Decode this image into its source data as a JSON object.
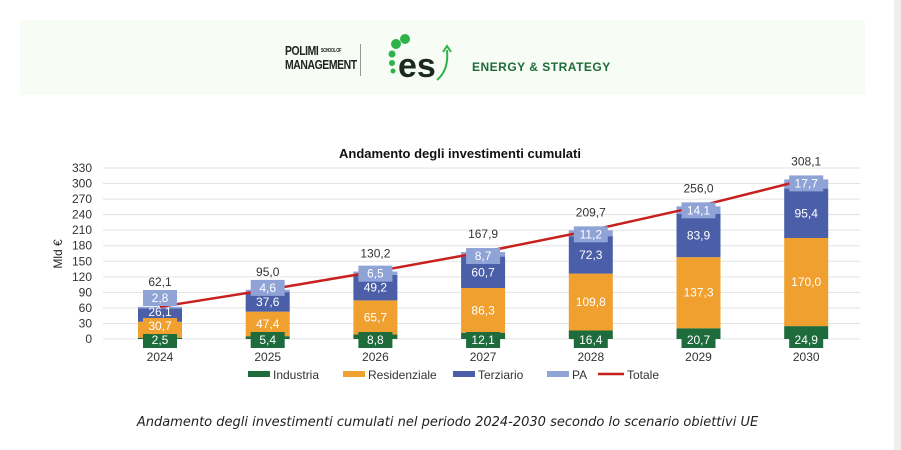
{
  "header": {
    "polimi_line1": "POLIMI",
    "polimi_small": "SCHOOL OF",
    "polimi_line2": "MANAGEMENT",
    "es_logo": "es",
    "es_name": "ENERGY & STRATEGY"
  },
  "chart_data": {
    "type": "bar",
    "stacked": true,
    "title": "Andamento degli investimenti cumulati",
    "ylabel": "Mld €",
    "xlabel": "",
    "ylim": [
      0,
      330
    ],
    "yticks": [
      0,
      30,
      60,
      90,
      120,
      150,
      180,
      210,
      240,
      270,
      300,
      330
    ],
    "categories": [
      "2024",
      "2025",
      "2026",
      "2027",
      "2028",
      "2029",
      "2030"
    ],
    "series": [
      {
        "name": "Industria",
        "color": "#1e6b3c",
        "values": [
          2.5,
          5.4,
          8.8,
          12.1,
          16.4,
          20.7,
          24.9
        ],
        "labels": [
          "2,5",
          "5,4",
          "8,8",
          "12,1",
          "16,4",
          "20,7",
          "24,9"
        ]
      },
      {
        "name": "Residenziale",
        "color": "#efa02e",
        "values": [
          30.7,
          47.4,
          65.7,
          86.3,
          109.8,
          137.3,
          170.0
        ],
        "labels": [
          "30,7",
          "47,4",
          "65,7",
          "86,3",
          "109,8",
          "137,3",
          "170,0"
        ]
      },
      {
        "name": "Terziario",
        "color": "#4a5fa8",
        "values": [
          26.1,
          37.6,
          49.2,
          60.7,
          72.3,
          83.9,
          95.4
        ],
        "labels": [
          "26,1",
          "37,6",
          "49,2",
          "60,7",
          "72,3",
          "83,9",
          "95,4"
        ]
      },
      {
        "name": "PA",
        "color": "#8fa3d6",
        "values": [
          2.8,
          4.6,
          6.5,
          8.7,
          11.2,
          14.1,
          17.7
        ],
        "labels": [
          "2,8",
          "4,6",
          "6,5",
          "8,7",
          "11,2",
          "14,1",
          "17,7"
        ]
      }
    ],
    "line": {
      "name": "Totale",
      "color": "#c8201e",
      "values": [
        62.1,
        95.0,
        130.2,
        167.9,
        209.7,
        256.0,
        308.1
      ],
      "labels": [
        "62,1",
        "95,0",
        "130,2",
        "167,9",
        "209,7",
        "256,0",
        "308,1"
      ]
    },
    "grid": true,
    "legend": "bottom"
  },
  "caption": "Andamento degli investimenti cumulati nel periodo 2024-2030 secondo lo scenario obiettivi UE"
}
